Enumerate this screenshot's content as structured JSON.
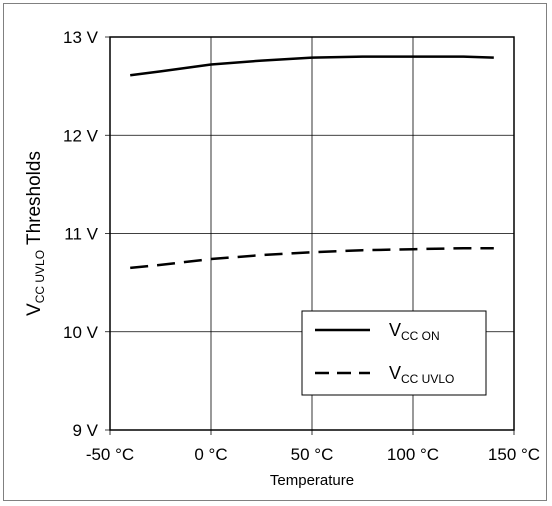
{
  "chart_data": {
    "type": "line",
    "xlabel": "Temperature",
    "ylabel_main": "V",
    "ylabel_sub": "CC UVLO",
    "ylabel_rest": " Thresholds",
    "x_ticks": [
      "-50 °C",
      "0 °C",
      "50 °C",
      "100 °C",
      "150 °C"
    ],
    "y_ticks": [
      "9 V",
      "10 V",
      "11 V",
      "12 V",
      "13 V"
    ],
    "xlim": [
      -50,
      150
    ],
    "ylim": [
      9,
      13
    ],
    "grid": true,
    "legend_position": "bottom-right",
    "series": [
      {
        "legend_main": "V",
        "legend_sub": "CC ON",
        "line_style": "solid",
        "x": [
          -40,
          -25,
          0,
          25,
          50,
          75,
          100,
          125,
          140
        ],
        "y": [
          12.61,
          12.65,
          12.72,
          12.76,
          12.79,
          12.8,
          12.8,
          12.8,
          12.79
        ]
      },
      {
        "legend_main": "V",
        "legend_sub": "CC UVLO",
        "line_style": "dashed",
        "x": [
          -40,
          -25,
          0,
          25,
          50,
          75,
          100,
          125,
          140
        ],
        "y": [
          10.65,
          10.68,
          10.74,
          10.78,
          10.81,
          10.83,
          10.84,
          10.85,
          10.85
        ]
      }
    ]
  }
}
